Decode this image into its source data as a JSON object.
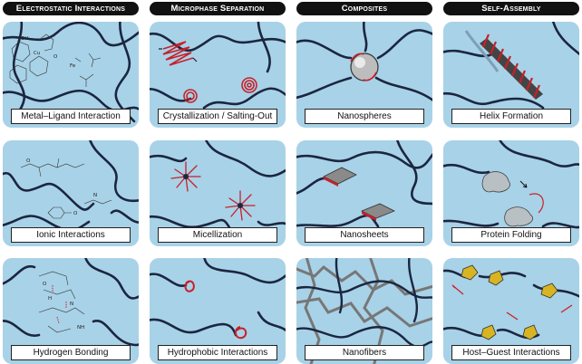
{
  "columns": [
    {
      "title": "Electrostatic Interactions",
      "panels": [
        "Metal–Ligand Interaction",
        "Ionic Interactions",
        "Hydrogen Bonding"
      ]
    },
    {
      "title": "Microphase Separation",
      "panels": [
        "Crystallization / Salting-Out",
        "Micellization",
        "Hydrophobic Interactions"
      ]
    },
    {
      "title": "Composites",
      "panels": [
        "Nanospheres",
        "Nanosheets",
        "Nanofibers"
      ]
    },
    {
      "title": "Self-Assembly",
      "panels": [
        "Helix Formation",
        "Protein Folding",
        "Host–Guest Interactions"
      ]
    }
  ],
  "chem_labels": {
    "copper": "Cu",
    "iron": "Fe",
    "o": "O",
    "oh": "OH",
    "h": "H",
    "n": "N",
    "nh": "NH"
  },
  "colors": {
    "panel_bg": "#a8d2e7",
    "chain": "#1b2640",
    "accent": "#c8202a",
    "gray": "#8a8a8a",
    "gold": "#d8b423"
  }
}
